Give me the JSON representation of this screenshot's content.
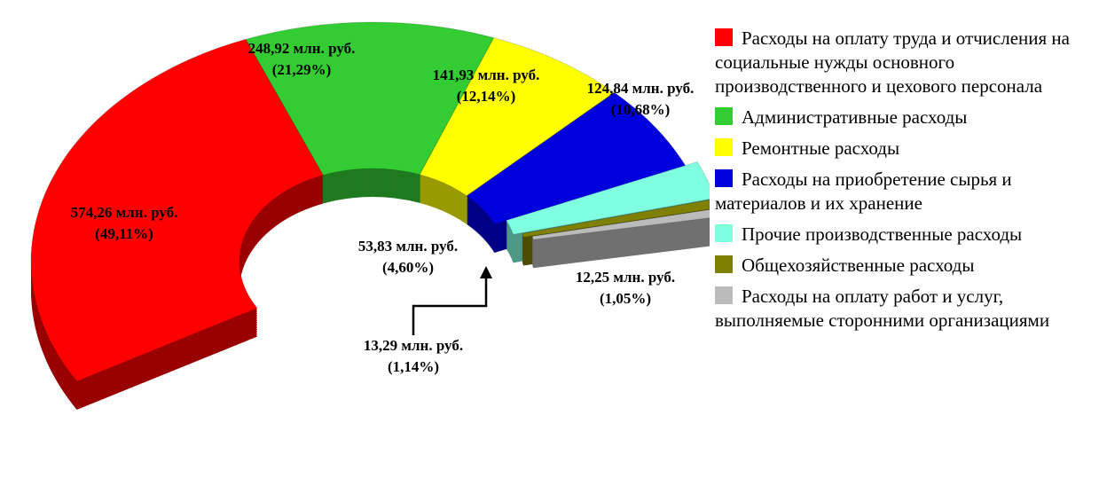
{
  "chart_data": {
    "type": "pie",
    "categories": [
      "Расходы на оплату труда и отчисления на социальные нужды основного производственного и цехового персонала",
      "Административные расходы",
      "Ремонтные расходы",
      "Расходы на приобретение сырья и материалов и их хранение",
      "Прочие производственные расходы",
      "Общехозяйственные расходы",
      "Расходы на оплату работ и услуг, выполняемые сторонними организациями"
    ],
    "values": [
      574.26,
      248.92,
      141.93,
      124.84,
      53.83,
      13.29,
      12.25
    ],
    "value_labels": [
      "574,26 млн. руб. (49,11%)",
      "248,92 млн. руб. (21,29%)",
      "141,93 млн. руб. (12,14%)",
      "124,84 млн. руб. (10,68%)",
      "53,83 млн. руб. (4,60%)",
      "13,29 млн. руб. (1,14%)",
      "12,25 млн. руб. (1,05%)"
    ],
    "colors": [
      "#ff0000",
      "#33cc33",
      "#ffff00",
      "#0000dd",
      "#80ffe0",
      "#808000",
      "#bbbbbb"
    ],
    "legend": "right"
  }
}
